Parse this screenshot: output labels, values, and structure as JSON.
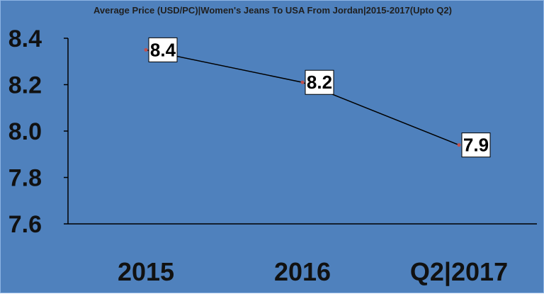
{
  "chart_data": {
    "type": "line",
    "title": "Average Price (USD/PC)|Women's Jeans To USA From Jordan|2015-2017(Upto Q2)",
    "categories": [
      "2015",
      "2016",
      "Q2|2017"
    ],
    "values": [
      8.35,
      8.21,
      7.94
    ],
    "data_labels": [
      "8.4",
      "8.2",
      "7.9"
    ],
    "ylim": [
      7.6,
      8.4
    ],
    "yticks": [
      "7.6",
      "7.8",
      "8.0",
      "8.2",
      "8.4"
    ],
    "xlabel": "",
    "ylabel": "",
    "grid": false,
    "colors": {
      "background": "#4f81bd",
      "line": "#000000",
      "marker": "#c0504d",
      "label_box": "#ffffff"
    }
  }
}
